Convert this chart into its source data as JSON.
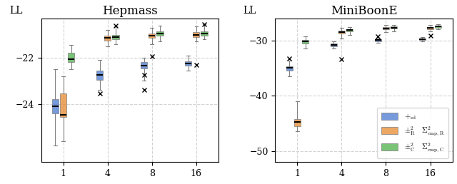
{
  "hepmass": {
    "title": "Hepmass",
    "ylim": [
      -26.5,
      -20.3
    ],
    "yticks": [
      -24,
      -22
    ],
    "blue": {
      "1": {
        "whislo": -25.8,
        "q1": -24.4,
        "med": -24.1,
        "q3": -23.8,
        "whishi": -22.5,
        "fliers": []
      },
      "4": {
        "whislo": -23.4,
        "q1": -22.95,
        "med": -22.75,
        "q3": -22.55,
        "whishi": -22.1,
        "fliers": [
          -23.55
        ]
      },
      "8": {
        "whislo": -23.0,
        "q1": -22.45,
        "med": -22.35,
        "q3": -22.2,
        "whishi": -22.0,
        "fliers": [
          -23.4,
          -22.75
        ]
      },
      "16": {
        "whislo": -22.55,
        "q1": -22.35,
        "med": -22.25,
        "q3": -22.15,
        "whishi": -21.9,
        "fliers": []
      }
    },
    "orange": {
      "1": {
        "whislo": -25.6,
        "q1": -24.55,
        "med": -24.45,
        "q3": -23.55,
        "whishi": -22.8,
        "fliers": []
      },
      "4": {
        "whislo": -21.5,
        "q1": -21.25,
        "med": -21.15,
        "q3": -21.05,
        "whishi": -20.8,
        "fliers": []
      },
      "8": {
        "whislo": -21.4,
        "q1": -21.15,
        "med": -21.05,
        "q3": -20.95,
        "whishi": -20.7,
        "fliers": [
          -21.95
        ]
      },
      "16": {
        "whislo": -21.3,
        "q1": -21.1,
        "med": -21.0,
        "q3": -20.9,
        "whishi": -20.65,
        "fliers": [
          -22.3
        ]
      }
    },
    "green": {
      "1": {
        "whislo": -22.5,
        "q1": -22.2,
        "med": -22.05,
        "q3": -21.8,
        "whishi": -21.45,
        "fliers": []
      },
      "4": {
        "whislo": -21.4,
        "q1": -21.2,
        "med": -21.1,
        "q3": -21.0,
        "whishi": -20.65,
        "fliers": [
          -20.6
        ]
      },
      "8": {
        "whislo": -21.3,
        "q1": -21.05,
        "med": -20.95,
        "q3": -20.85,
        "whishi": -20.6,
        "fliers": []
      },
      "16": {
        "whislo": -21.2,
        "q1": -21.05,
        "med": -20.95,
        "q3": -20.85,
        "whishi": -20.55,
        "fliers": [
          -20.55
        ]
      }
    }
  },
  "miniboone": {
    "title": "MiniBoonE",
    "ylim": [
      -52,
      -26
    ],
    "yticks": [
      -50,
      -40,
      -30
    ],
    "blue": {
      "1": {
        "whislo": -36.5,
        "q1": -35.4,
        "med": -35.0,
        "q3": -34.7,
        "whishi": -33.7,
        "fliers": [
          -33.3
        ]
      },
      "4": {
        "whislo": -31.5,
        "q1": -31.0,
        "med": -30.8,
        "q3": -30.5,
        "whishi": -30.2,
        "fliers": []
      },
      "8": {
        "whislo": -30.4,
        "q1": -30.1,
        "med": -29.95,
        "q3": -29.8,
        "whishi": -29.6,
        "fliers": [
          -29.2
        ]
      },
      "16": {
        "whislo": -30.2,
        "q1": -29.9,
        "med": -29.75,
        "q3": -29.6,
        "whishi": -29.4,
        "fliers": []
      }
    },
    "orange": {
      "1": {
        "whislo": -46.5,
        "q1": -45.5,
        "med": -44.8,
        "q3": -44.2,
        "whishi": -41.0,
        "fliers": []
      },
      "4": {
        "whislo": -29.6,
        "q1": -28.8,
        "med": -28.5,
        "q3": -28.2,
        "whishi": -27.7,
        "fliers": [
          -33.4
        ]
      },
      "8": {
        "whislo": -28.5,
        "q1": -28.0,
        "med": -27.8,
        "q3": -27.6,
        "whishi": -27.2,
        "fliers": []
      },
      "16": {
        "whislo": -28.3,
        "q1": -27.9,
        "med": -27.7,
        "q3": -27.55,
        "whishi": -27.2,
        "fliers": [
          -29.1
        ]
      }
    },
    "green": {
      "1": {
        "whislo": -31.5,
        "q1": -30.6,
        "med": -30.2,
        "q3": -29.9,
        "whishi": -29.2,
        "fliers": []
      },
      "4": {
        "whislo": -29.0,
        "q1": -28.35,
        "med": -28.1,
        "q3": -27.9,
        "whishi": -27.6,
        "fliers": []
      },
      "8": {
        "whislo": -28.4,
        "q1": -27.8,
        "med": -27.65,
        "q3": -27.5,
        "whishi": -27.2,
        "fliers": []
      },
      "16": {
        "whislo": -28.0,
        "q1": -27.65,
        "med": -27.5,
        "q3": -27.35,
        "whishi": -27.1,
        "fliers": []
      }
    }
  },
  "colors": {
    "blue": "#4878CF",
    "orange": "#E68A2E",
    "green": "#4DAF4A"
  },
  "xtick_labels": [
    "1",
    "4",
    "8",
    "16"
  ],
  "series_keys": [
    "blue",
    "orange",
    "green"
  ],
  "offsets": [
    -0.18,
    0.0,
    0.18
  ],
  "box_width": 0.15
}
